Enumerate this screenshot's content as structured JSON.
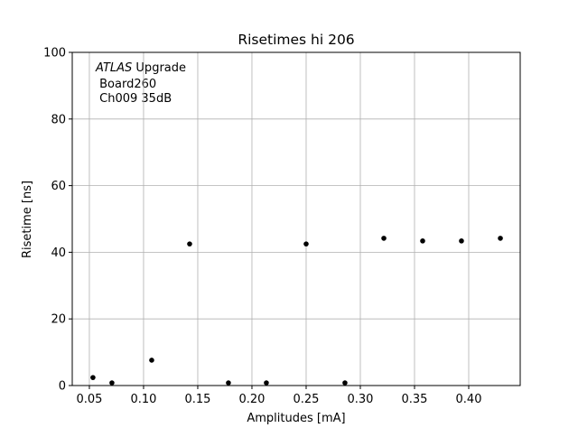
{
  "chart_data": {
    "type": "scatter",
    "title": "Risetimes hi 206",
    "xlabel": "Amplitudes [mA]",
    "ylabel": "Risetime [ns]",
    "annotation": {
      "emphasis": "ATLAS",
      "text": "Upgrade",
      "lines": [
        "Board260",
        "Ch009 35dB"
      ]
    },
    "x": [
      0.0533,
      0.0708,
      0.1075,
      0.1425,
      0.1783,
      0.2133,
      0.25,
      0.2858,
      0.3217,
      0.3575,
      0.3933,
      0.4292
    ],
    "values": [
      2.4,
      0.8,
      7.6,
      42.5,
      0.8,
      0.8,
      42.5,
      0.8,
      44.2,
      43.4,
      43.4,
      44.2
    ],
    "color": "#000000",
    "xlim": [
      0.0342,
      0.4475
    ],
    "xticks": [
      0.05,
      {
        "value": 0.1,
        "label": "0.10"
      },
      0.15,
      {
        "value": 0.2,
        "label": "0.20"
      },
      0.25,
      {
        "value": 0.3,
        "label": "0.30"
      },
      0.35,
      {
        "value": 0.4,
        "label": "0.40"
      }
    ],
    "ylim": [
      0,
      100
    ],
    "yticks": [
      0,
      20,
      40,
      60,
      80,
      100
    ],
    "grid": true
  }
}
